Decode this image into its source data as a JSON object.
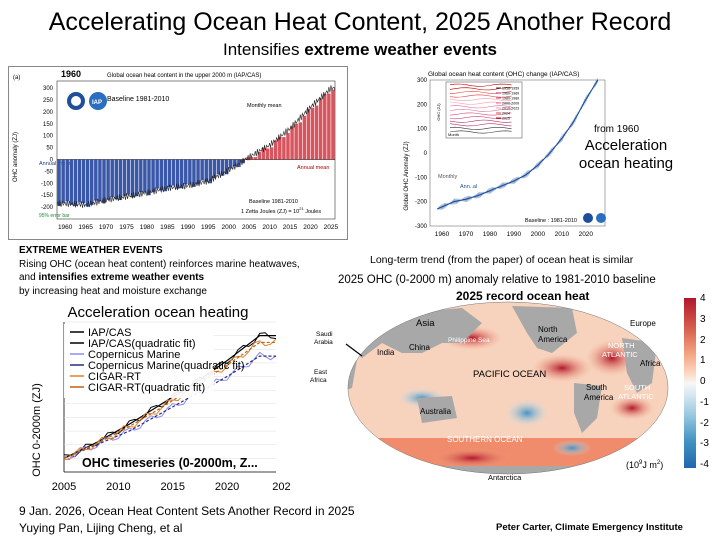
{
  "title": "Accelerating Ocean Heat Content, 2025 Another Record",
  "subtitle_prefix": "Intensifies ",
  "subtitle_bold": "extreme weather events",
  "panel_a": {
    "panel_letter": "(a)",
    "year_label": "1960",
    "title": "Global ocean heat content in the upper 2000 m (IAP/CAS)",
    "baseline_label": "Baseline 1981-2010",
    "baseline_note": "Baseline 1981-2010",
    "joule_note": "1 Zetta Joules (ZJ) = 10",
    "joule_exp": "21",
    "joule_unit": " Joules",
    "monthly_mean": "Monthly mean",
    "annual_mean_left": "Annual mean",
    "annual_mean_right": "Annual mean",
    "error_bar": "95% error bar",
    "ylabel": "OHC anomaly (ZJ)"
  },
  "panel_b": {
    "title": "Global ocean heat content (OHC) change (IAP/CAS)",
    "ylabel": "Global OHC Anomaly (ZJ)",
    "monthly": "Monthly",
    "annual": "Ann..al",
    "baseline": "Baseline : 1981-2010",
    "from_1960": "from 1960",
    "accel_line1": "Acceleration",
    "accel_line2": "ocean heating",
    "inset_ylabel": "OHC (ZJ)",
    "inset_xlabel": "Month",
    "inset_legend": [
      "1958-1959",
      "1960-1969",
      "1980-1989",
      "2000-2009",
      "2010-2023",
      "2024",
      "2025"
    ]
  },
  "extreme": {
    "heading": "EXTREME WEATHER EVENTS",
    "line1": "Rising OHC (ocean heat content) reinforces marine heatwaves,",
    "line2_prefix": "and ",
    "line2_bold": "intensifies extreme weather events",
    "line3": "by increasing heat and moisture exchange"
  },
  "panel_c": {
    "title": "Acceleration ocean heating",
    "ylabel": "OHC 0-2000m (ZJ)",
    "chart_title": "OHC timeseries (0-2000m, Z...",
    "legend": [
      "IAP/CAS",
      "IAP/CAS(quadratic fit)",
      "Copernicus Marine",
      "Copernicus Marine(quadratic fit)",
      "CIGAR-RT",
      "CIGAR-RT(quadratic fit)"
    ]
  },
  "map": {
    "caption1": "Long-term trend (from the paper) of ocean heat is similar",
    "caption2": "2025 OHC (0-2000 m) anomaly relative to 1981-2010 baseline",
    "caption3": "2025 record ocean heat",
    "labels": {
      "asia": "Asia",
      "saudi": "Saudi\nArabia",
      "india": "India",
      "china": "China",
      "philippine": "Philippine Sea",
      "north_america": "North\nAmerica",
      "europe": "Europe",
      "north_atlantic": "NORTH\nATLANTIC",
      "africa": "Africa",
      "east_africa": "East\nAfrica",
      "pacific": "PACIFIC OCEAN",
      "south_america": "South\nAmerica",
      "south_atlantic": "SOUTH\nATLANTIC",
      "australia": "Australia",
      "southern": "SOUTHERN OCEAN",
      "antarctica": "Antarctica"
    },
    "unit_prefix": "(10",
    "unit_exp1": "9",
    "unit_mid": "J m",
    "unit_exp2": "2",
    "unit_suffix": ")",
    "colorbar_ticks": [
      "4",
      "3",
      "2",
      "1",
      "0",
      "-1",
      "-2",
      "-3",
      "-4"
    ]
  },
  "footer": {
    "line1": "9 Jan. 2026, Ocean Heat Content Sets Another Record in 2025",
    "line2": "Yuying Pan, Lijing Cheng, et al",
    "credit": "Peter Carter, Climate Emergency Institute"
  },
  "chart_data": [
    {
      "type": "bar",
      "title": "Global ocean heat content in the upper 2000 m (IAP/CAS)",
      "ylabel": "OHC anomaly (ZJ)",
      "ylim": [
        -250,
        330
      ],
      "x": [
        1960,
        1965,
        1970,
        1975,
        1980,
        1985,
        1990,
        1995,
        2000,
        2005,
        2010,
        2015,
        2020,
        2025
      ],
      "values": [
        -185,
        -190,
        -170,
        -155,
        -140,
        -120,
        -110,
        -90,
        -45,
        10,
        60,
        130,
        220,
        300
      ],
      "x_ticks": [
        "1960",
        "1965",
        "1970",
        "1975",
        "1980",
        "1985",
        "1990",
        "1995",
        "2000",
        "2005",
        "2010",
        "2015",
        "2020",
        "2025"
      ],
      "y_ticks": [
        "300",
        "250",
        "200",
        "150",
        "100",
        "50",
        "0",
        "-50",
        "-100",
        "-150",
        "-200"
      ]
    },
    {
      "type": "line",
      "title": "Global ocean heat content (OHC) change (IAP/CAS)",
      "ylabel": "Global OHC Anomaly (ZJ)",
      "ylim": [
        -300,
        300
      ],
      "x": [
        1958,
        1965,
        1970,
        1975,
        1980,
        1985,
        1990,
        1995,
        2000,
        2005,
        2010,
        2015,
        2020,
        2025
      ],
      "values": [
        -230,
        -200,
        -190,
        -175,
        -155,
        -135,
        -115,
        -90,
        -50,
        0,
        60,
        130,
        220,
        300
      ],
      "x_ticks": [
        "1960",
        "1970",
        "1980",
        "1990",
        "2000",
        "2010",
        "2020"
      ],
      "y_ticks": [
        "300",
        "200",
        "100",
        "0",
        "-100",
        "-200",
        "-300"
      ]
    },
    {
      "type": "line",
      "title": "OHC timeseries (0-2000m, Z...",
      "ylabel": "OHC 0-2000m (ZJ)",
      "x_ticks": [
        "2005",
        "2010",
        "2015",
        "2020",
        "202"
      ],
      "x": [
        2005,
        2008,
        2011,
        2014,
        2017,
        2020,
        2023
      ],
      "series": [
        {
          "name": "IAP/CAS",
          "values": [
            0,
            35,
            75,
            120,
            165,
            215,
            270
          ]
        },
        {
          "name": "Copernicus Marine",
          "values": [
            0,
            30,
            60,
            100,
            140,
            180,
            225
          ]
        },
        {
          "name": "CIGAR-RT",
          "values": [
            0,
            32,
            70,
            112,
            158,
            205,
            255
          ]
        }
      ]
    }
  ]
}
